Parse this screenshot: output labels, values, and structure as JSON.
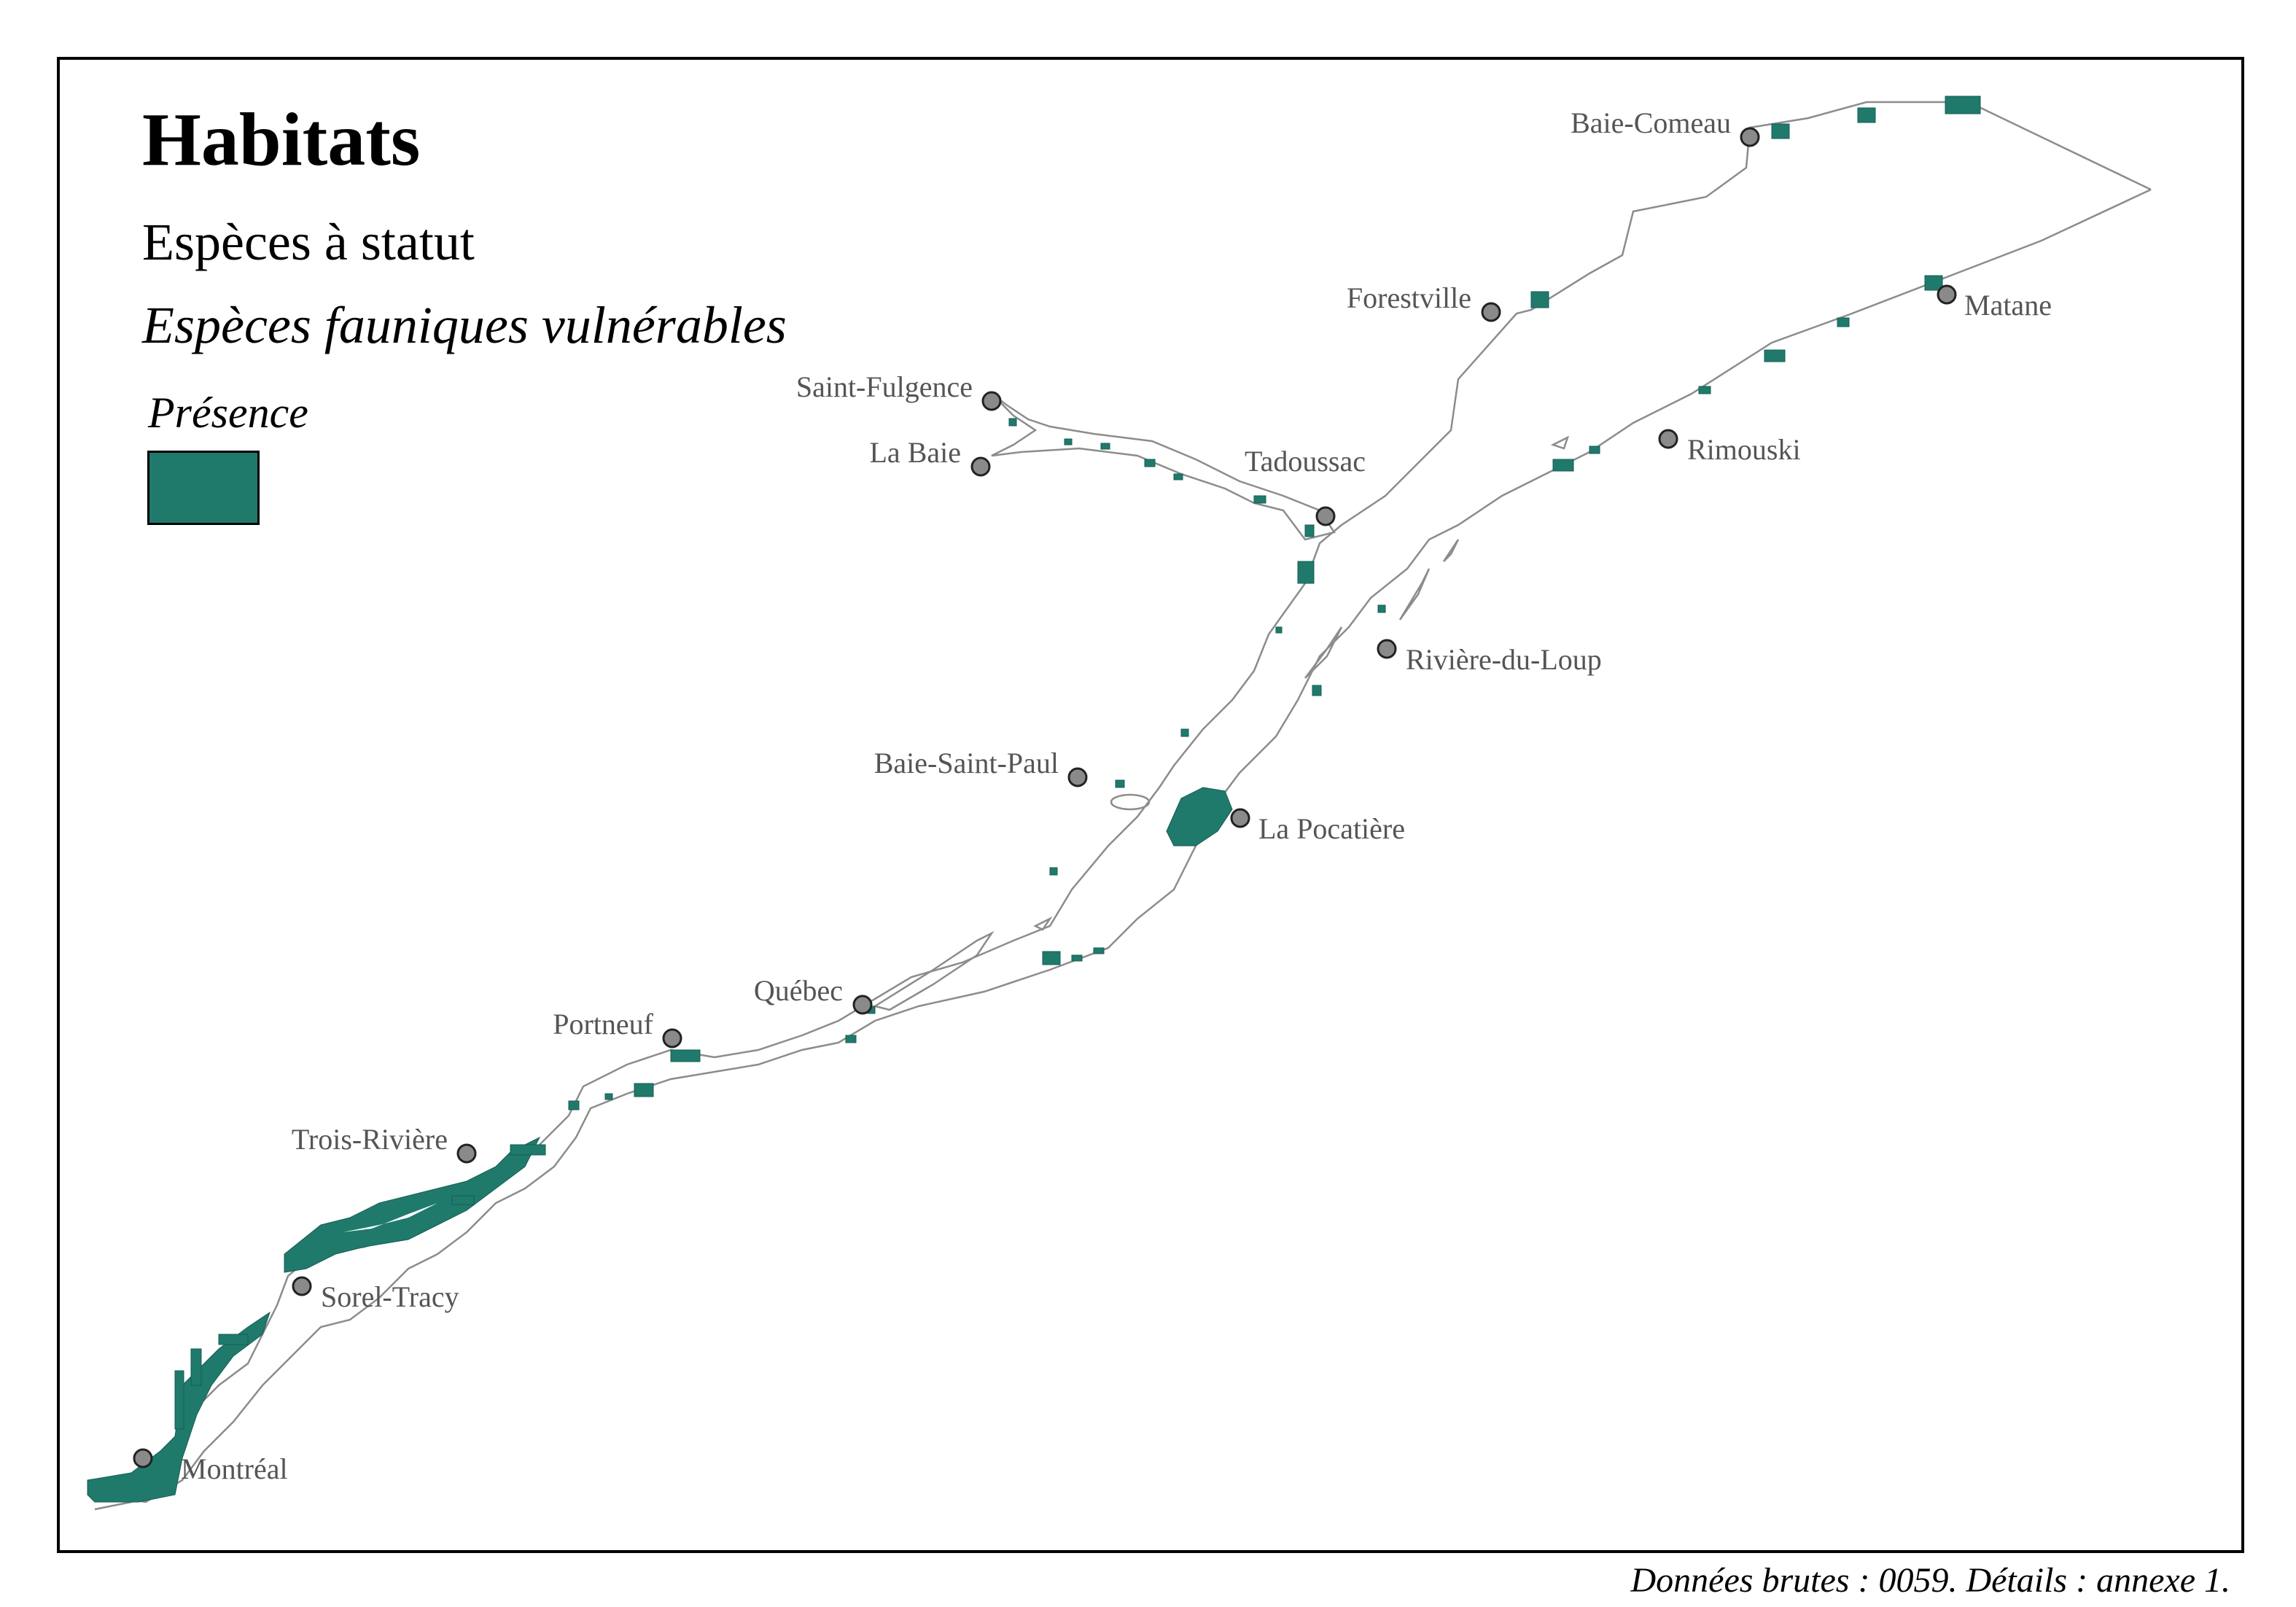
{
  "map": {
    "title": "Habitats",
    "subtitle": "Espèces à statut",
    "layer": "Espèces fauniques vulnérables",
    "legend": {
      "title": "Présence",
      "entries": [
        {
          "label": "",
          "color": "#1f7a6c"
        }
      ]
    },
    "source": "Données brutes : 0059. Détails : annexe 1.",
    "colors": {
      "habitat": "#1f7a6c",
      "shoreline": "#8c8c8c",
      "city_marker": "#8a8a8a",
      "frame": "#000000"
    },
    "cities": [
      {
        "id": "baie-comeau",
        "name": "Baie-Comeau"
      },
      {
        "id": "forestville",
        "name": "Forestville"
      },
      {
        "id": "matane",
        "name": "Matane"
      },
      {
        "id": "saint-fulgence",
        "name": "Saint-Fulgence"
      },
      {
        "id": "la-baie",
        "name": "La Baie"
      },
      {
        "id": "tadoussac",
        "name": "Tadoussac"
      },
      {
        "id": "rimouski",
        "name": "Rimouski"
      },
      {
        "id": "riviere-du-loup",
        "name": "Rivière-du-Loup"
      },
      {
        "id": "baie-saint-paul",
        "name": "Baie-Saint-Paul"
      },
      {
        "id": "la-pocatiere",
        "name": "La Pocatière"
      },
      {
        "id": "quebec",
        "name": "Québec"
      },
      {
        "id": "portneuf",
        "name": "Portneuf"
      },
      {
        "id": "trois-riviere",
        "name": "Trois-Rivière"
      },
      {
        "id": "sorel-tracy",
        "name": "Sorel-Tracy"
      },
      {
        "id": "montreal",
        "name": "Montréal"
      }
    ]
  }
}
